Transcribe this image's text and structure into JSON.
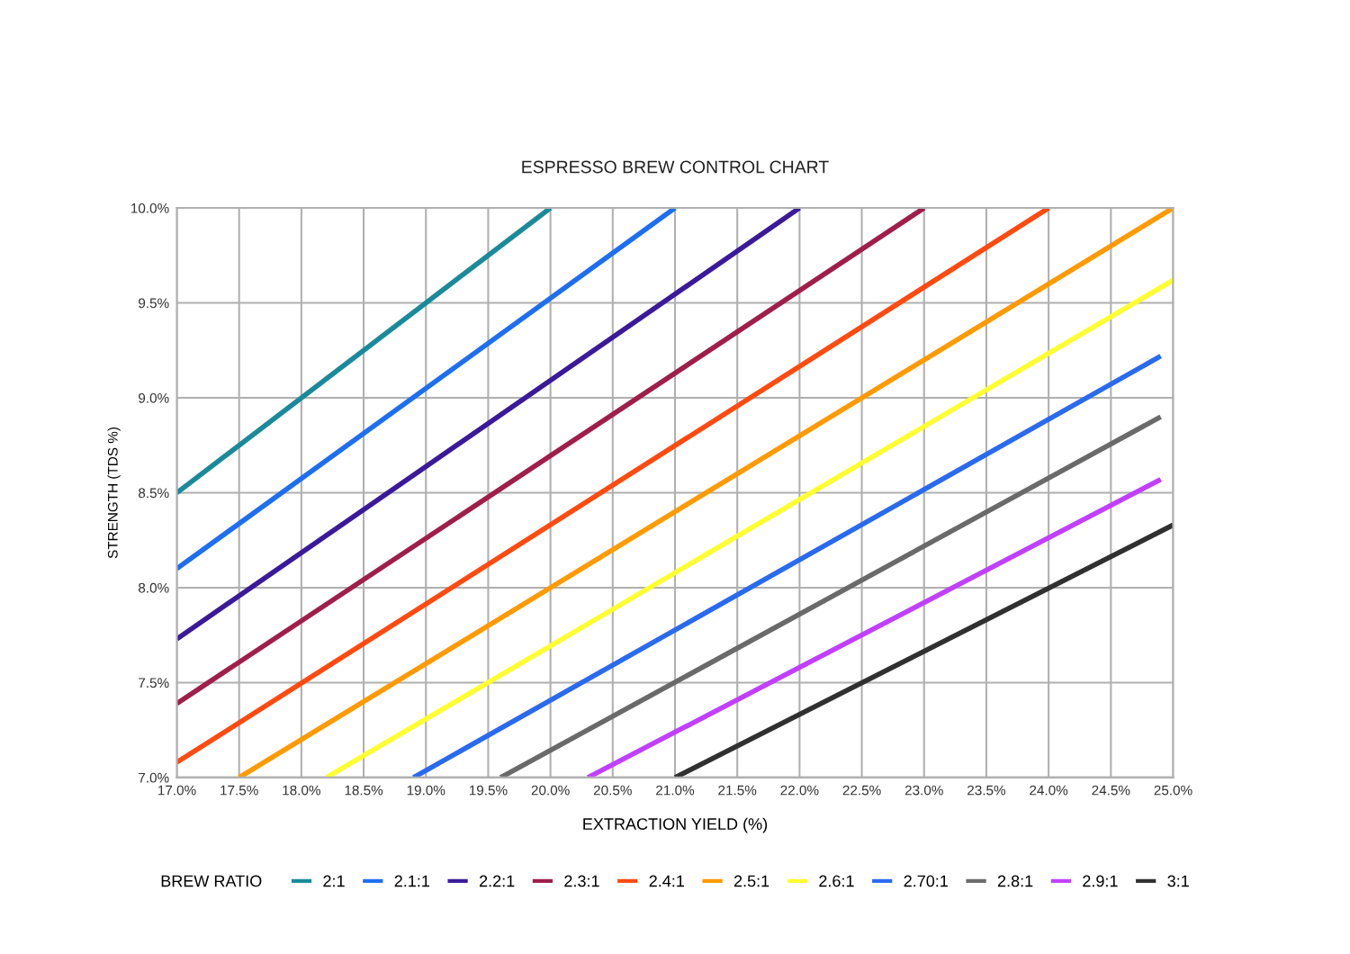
{
  "chart_data": {
    "type": "line",
    "title": "ESPRESSO BREW CONTROL CHART",
    "xlabel": "EXTRACTION YIELD (%)",
    "ylabel": "STRENGTH (TDS %)",
    "legend_title": "BREW RATIO",
    "xlim": [
      17.0,
      25.0
    ],
    "ylim": [
      7.0,
      10.0
    ],
    "xticks": [
      {
        "value": 17.0,
        "label": "17.0%"
      },
      {
        "value": 17.5,
        "label": "17.5%"
      },
      {
        "value": 18.0,
        "label": "18.0%"
      },
      {
        "value": 18.5,
        "label": "18.5%"
      },
      {
        "value": 19.0,
        "label": "19.0%"
      },
      {
        "value": 19.5,
        "label": "19.5%"
      },
      {
        "value": 20.0,
        "label": "20.0%"
      },
      {
        "value": 20.5,
        "label": "20.5%"
      },
      {
        "value": 21.0,
        "label": "21.0%"
      },
      {
        "value": 21.5,
        "label": "21.5%"
      },
      {
        "value": 22.0,
        "label": "22.0%"
      },
      {
        "value": 22.5,
        "label": "22.5%"
      },
      {
        "value": 23.0,
        "label": "23.0%"
      },
      {
        "value": 23.5,
        "label": "23.5%"
      },
      {
        "value": 24.0,
        "label": "24.0%"
      },
      {
        "value": 24.5,
        "label": "24.5%"
      },
      {
        "value": 25.0,
        "label": "25.0%"
      }
    ],
    "yticks": [
      {
        "value": 7.0,
        "label": "7.0%"
      },
      {
        "value": 7.5,
        "label": "7.5%"
      },
      {
        "value": 8.0,
        "label": "8.0%"
      },
      {
        "value": 8.5,
        "label": "8.5%"
      },
      {
        "value": 9.0,
        "label": "9.0%"
      },
      {
        "value": 9.5,
        "label": "9.5%"
      },
      {
        "value": 10.0,
        "label": "10.0%"
      }
    ],
    "grid": true,
    "legend": "bottom",
    "marker": "none",
    "line_style": "solid",
    "series": [
      {
        "name": "2:1",
        "color": "#1a8a9a",
        "x": [
          17.0,
          20.0
        ],
        "values": [
          8.5,
          10.0
        ]
      },
      {
        "name": "2.1:1",
        "color": "#1e6ff0",
        "x": [
          17.0,
          21.0
        ],
        "values": [
          8.1,
          10.0
        ]
      },
      {
        "name": "2.2:1",
        "color": "#3a1a9a",
        "x": [
          17.0,
          22.0
        ],
        "values": [
          7.73,
          10.0
        ]
      },
      {
        "name": "2.3:1",
        "color": "#a01e4a",
        "x": [
          17.0,
          23.0
        ],
        "values": [
          7.39,
          10.0
        ]
      },
      {
        "name": "2.4:1",
        "color": "#ff4a10",
        "x": [
          17.0,
          24.0
        ],
        "values": [
          7.08,
          10.0
        ]
      },
      {
        "name": "2.5:1",
        "color": "#ff9a00",
        "x": [
          17.5,
          25.0
        ],
        "values": [
          7.0,
          10.0
        ]
      },
      {
        "name": "2.6:1",
        "color": "#ffff30",
        "x": [
          18.2,
          25.0
        ],
        "values": [
          7.0,
          9.62
        ]
      },
      {
        "name": "2.70:1",
        "color": "#2a6aee",
        "x": [
          18.9,
          24.9
        ],
        "values": [
          7.0,
          9.22
        ]
      },
      {
        "name": "2.8:1",
        "color": "#6a6a6a",
        "x": [
          19.6,
          24.9
        ],
        "values": [
          7.0,
          8.9
        ]
      },
      {
        "name": "2.9:1",
        "color": "#c040ff",
        "x": [
          20.3,
          24.9
        ],
        "values": [
          7.0,
          8.57
        ]
      },
      {
        "name": "3:1",
        "color": "#303030",
        "x": [
          21.0,
          25.0
        ],
        "values": [
          7.0,
          8.33
        ]
      }
    ]
  }
}
